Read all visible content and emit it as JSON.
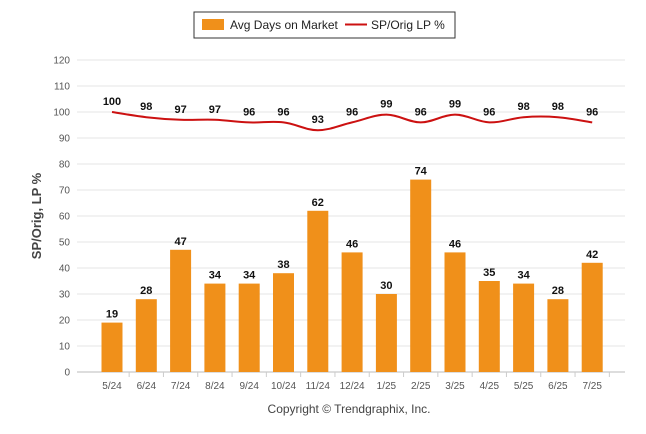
{
  "chart_data": {
    "type": "bar",
    "categories": [
      "5/24",
      "6/24",
      "7/24",
      "8/24",
      "9/24",
      "10/24",
      "11/24",
      "12/24",
      "1/25",
      "2/25",
      "3/25",
      "4/25",
      "5/25",
      "6/25",
      "7/25"
    ],
    "series": [
      {
        "name": "Avg Days on Market",
        "type": "bar",
        "color": "#F0901A",
        "values": [
          19,
          28,
          47,
          34,
          34,
          38,
          62,
          46,
          30,
          74,
          46,
          35,
          34,
          28,
          42
        ]
      },
      {
        "name": "SP/Orig LP %",
        "type": "line",
        "color": "#CC1111",
        "values": [
          100,
          98,
          97,
          97,
          96,
          96,
          93,
          96,
          99,
          96,
          99,
          96,
          98,
          98,
          96
        ]
      }
    ],
    "ylabel": "SP/Orig, LP %",
    "xlabel": "",
    "ylim": [
      0,
      120
    ],
    "yticks": [
      0,
      10,
      20,
      30,
      40,
      50,
      60,
      70,
      80,
      90,
      100,
      110,
      120
    ],
    "grid": true,
    "legend_position": "top-center"
  },
  "footer": {
    "copyright": "Copyright © Trendgraphix, Inc."
  }
}
